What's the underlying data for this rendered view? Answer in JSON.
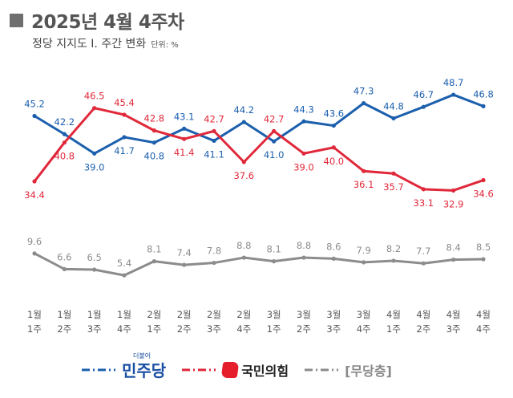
{
  "header": {
    "title": "2025년 4월 4주차",
    "subtitle": "정당 지지도 Ⅰ. 주간 변화",
    "unit": "단위: %"
  },
  "colors": {
    "democratic": "#1b5fad",
    "ppp": "#e0283a",
    "independent": "#8c8c8c"
  },
  "legend": {
    "democratic": "민주당",
    "democratic_small": "더불어",
    "ppp": "국민의힘",
    "independent": "[무당층]"
  },
  "chart_data": {
    "type": "line",
    "title": "2025년 4월 4주차",
    "subtitle": "정당 지지도 Ⅰ. 주간 변화",
    "unit": "%",
    "categories": [
      [
        "1월",
        "1주"
      ],
      [
        "1월",
        "2주"
      ],
      [
        "1월",
        "3주"
      ],
      [
        "1월",
        "4주"
      ],
      [
        "2월",
        "1주"
      ],
      [
        "2월",
        "2주"
      ],
      [
        "2월",
        "3주"
      ],
      [
        "2월",
        "4주"
      ],
      [
        "3월",
        "1주"
      ],
      [
        "3월",
        "2주"
      ],
      [
        "3월",
        "3주"
      ],
      [
        "3월",
        "4주"
      ],
      [
        "4월",
        "1주"
      ],
      [
        "4월",
        "2주"
      ],
      [
        "4월",
        "3주"
      ],
      [
        "4월",
        "4주"
      ]
    ],
    "series": [
      {
        "name": "민주당",
        "values": [
          45.2,
          42.2,
          39.0,
          41.7,
          40.8,
          43.1,
          41.1,
          44.2,
          41.0,
          44.3,
          43.6,
          47.3,
          44.8,
          46.7,
          48.7,
          46.8
        ]
      },
      {
        "name": "국민의힘",
        "values": [
          34.4,
          40.8,
          46.5,
          45.4,
          42.8,
          41.4,
          42.7,
          37.6,
          42.7,
          39.0,
          40.0,
          36.1,
          35.7,
          33.1,
          32.9,
          34.6
        ]
      },
      {
        "name": "[무당층]",
        "values": [
          9.6,
          6.6,
          6.5,
          5.4,
          8.1,
          7.4,
          7.8,
          8.8,
          8.1,
          8.8,
          8.6,
          7.9,
          8.2,
          7.7,
          8.4,
          8.5
        ]
      }
    ],
    "grid": false,
    "legend_position": "bottom"
  }
}
